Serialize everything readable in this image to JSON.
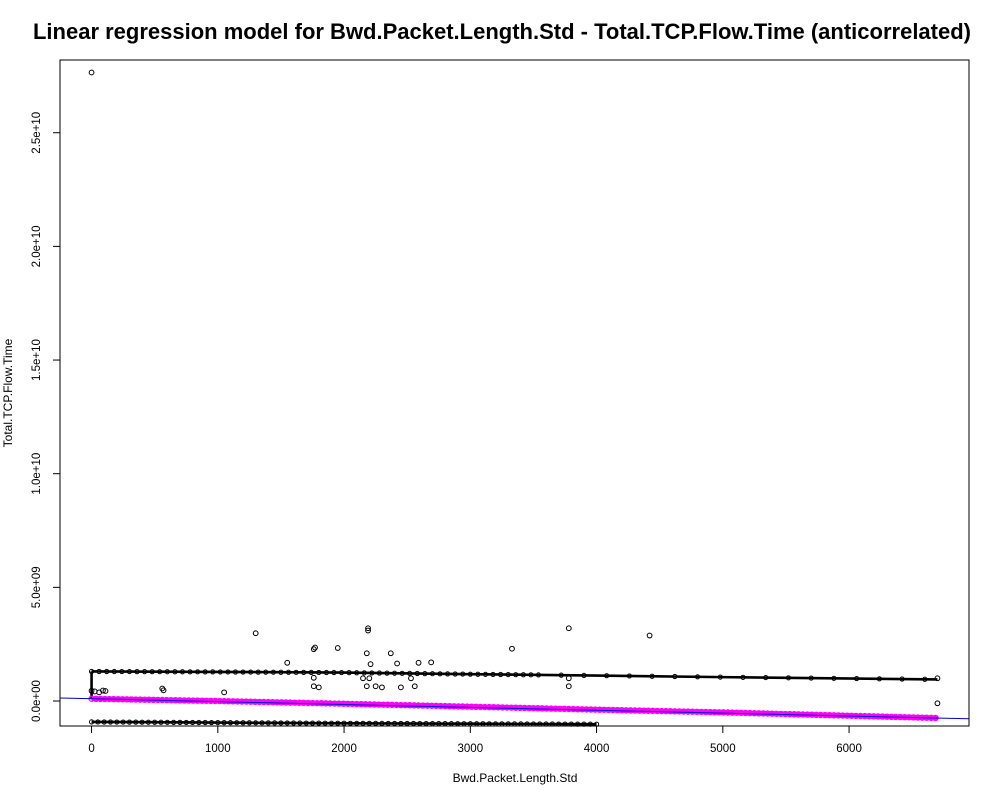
{
  "chart_data": {
    "type": "scatter",
    "title": "Linear regression model for Bwd.Packet.Length.Std - Total.TCP.Flow.Time (anticorrelated)",
    "xlabel": "Bwd.Packet.Length.Std",
    "ylabel": "Total.TCP.Flow.Time",
    "xlim": [
      -250,
      6950
    ],
    "ylim": [
      -1100000000,
      28200000000
    ],
    "xticks": [
      0,
      1000,
      2000,
      3000,
      4000,
      5000,
      6000
    ],
    "xtick_labels": [
      "0",
      "1000",
      "2000",
      "3000",
      "4000",
      "5000",
      "6000"
    ],
    "yticks": [
      0,
      5000000000,
      10000000000,
      15000000000,
      20000000000,
      25000000000
    ],
    "ytick_labels": [
      "0.0e+00",
      "5.0e+09",
      "1.0e+10",
      "1.5e+10",
      "2.0e+10",
      "2.5e+10"
    ],
    "grid": false,
    "colors": {
      "points": "#000000",
      "predicted": "#ff00ff",
      "regression_line": "#0000cc"
    },
    "series": [
      {
        "values": [
          [
            0,
            27650000000
          ],
          [
            0,
            450000000
          ],
          [
            25,
            420000000
          ],
          [
            60,
            380000000
          ],
          [
            90,
            460000000
          ],
          [
            110,
            440000000
          ],
          [
            560,
            550000000
          ],
          [
            570,
            470000000
          ],
          [
            1050,
            380000000
          ],
          [
            1300,
            2980000000
          ],
          [
            1550,
            1680000000
          ],
          [
            1760,
            2280000000
          ],
          [
            1770,
            2350000000
          ],
          [
            1760,
            1020000000
          ],
          [
            1760,
            650000000
          ],
          [
            1800,
            600000000
          ],
          [
            1950,
            2330000000
          ],
          [
            2150,
            1000000000
          ],
          [
            2180,
            650000000
          ],
          [
            2180,
            2100000000
          ],
          [
            2190,
            3100000000
          ],
          [
            2190,
            3200000000
          ],
          [
            2210,
            1620000000
          ],
          [
            2200,
            1000000000
          ],
          [
            2250,
            650000000
          ],
          [
            2300,
            600000000
          ],
          [
            2370,
            2100000000
          ],
          [
            2420,
            1650000000
          ],
          [
            2450,
            600000000
          ],
          [
            2530,
            1000000000
          ],
          [
            2560,
            650000000
          ],
          [
            2590,
            1680000000
          ],
          [
            2690,
            1700000000
          ],
          [
            3330,
            2300000000
          ],
          [
            3780,
            3200000000
          ],
          [
            3780,
            1000000000
          ],
          [
            3780,
            650000000
          ],
          [
            4420,
            2880000000
          ],
          [
            6700,
            1000000000
          ],
          [
            6700,
            -100000000
          ]
        ]
      },
      {
        "values": [
          [
            0,
            100000000
          ],
          [
            1000,
            0
          ],
          [
            2000,
            -120000000
          ],
          [
            3000,
            -250000000
          ],
          [
            4000,
            -380000000
          ],
          [
            5000,
            -500000000
          ],
          [
            6700,
            -750000000
          ]
        ]
      },
      {
        "values": [
          [
            0,
            1300000000
          ],
          [
            1000,
            1280000000
          ],
          [
            2000,
            1250000000
          ],
          [
            3000,
            1180000000
          ],
          [
            4000,
            1120000000
          ],
          [
            5000,
            1050000000
          ],
          [
            6700,
            950000000
          ]
        ]
      },
      {
        "values": [
          [
            0,
            -920000000
          ],
          [
            1000,
            -950000000
          ],
          [
            2000,
            -980000000
          ],
          [
            3000,
            -1000000000
          ],
          [
            4000,
            -1020000000
          ]
        ]
      }
    ]
  }
}
